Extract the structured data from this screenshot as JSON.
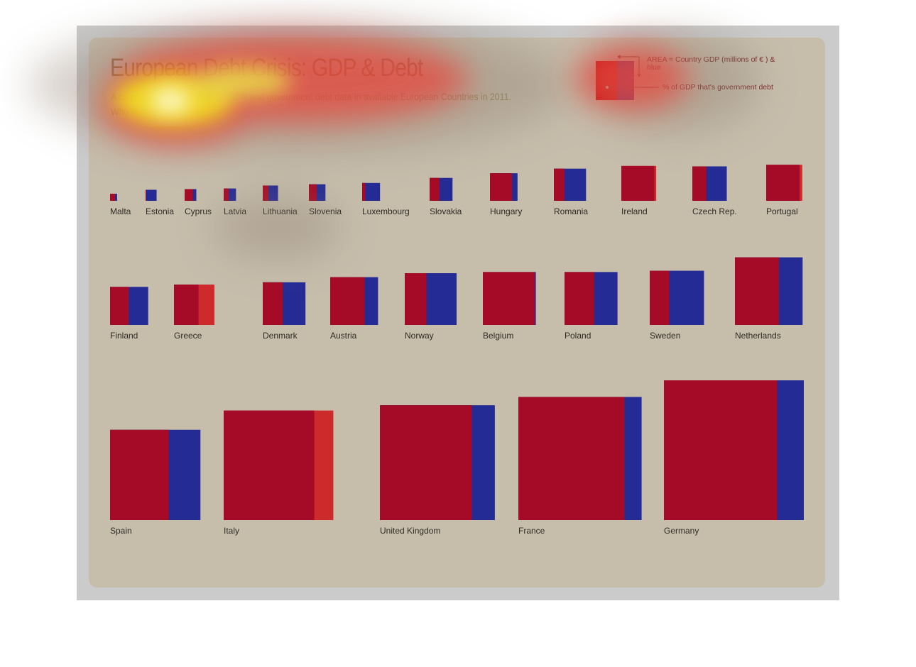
{
  "title": "European Debt Crisis: GDP & Debt",
  "subtitle_lines": [
    "A comparative visualisation of GDP and government debt data in available European Countries in 2011.",
    "Who is most in red?"
  ],
  "legend": {
    "area_label": "AREA = Country GDP (millions of  € ) & blue",
    "pct_label": "% of GDP that's government debt"
  },
  "colors": {
    "debt": "#a50a26",
    "remaining_gdp": "#242b95",
    "over_100_percent": "#cd2a2c",
    "panel": "#c6bdab",
    "frame": "#cbcbcb"
  },
  "chart_data": {
    "type": "area-proportional squares",
    "value_meaning": "debt_pct = government debt as % of GDP; gdp = relative GDP (square area)",
    "series": [
      {
        "name": "Malta",
        "gdp": 6500,
        "debt_pct": 72
      },
      {
        "name": "Estonia",
        "gdp": 16000,
        "debt_pct": 6
      },
      {
        "name": "Cyprus",
        "gdp": 18000,
        "debt_pct": 71
      },
      {
        "name": "Latvia",
        "gdp": 20000,
        "debt_pct": 42
      },
      {
        "name": "Lithuania",
        "gdp": 30700,
        "debt_pct": 38
      },
      {
        "name": "Slovenia",
        "gdp": 36000,
        "debt_pct": 47
      },
      {
        "name": "Luxembourg",
        "gdp": 42000,
        "debt_pct": 18
      },
      {
        "name": "Slovakia",
        "gdp": 69000,
        "debt_pct": 43
      },
      {
        "name": "Hungary",
        "gdp": 100000,
        "debt_pct": 80
      },
      {
        "name": "Romania",
        "gdp": 136000,
        "debt_pct": 33
      },
      {
        "name": "Ireland",
        "gdp": 160000,
        "debt_pct": 106
      },
      {
        "name": "Czech Rep.",
        "gdp": 156000,
        "debt_pct": 41
      },
      {
        "name": "Portugal",
        "gdp": 171000,
        "debt_pct": 108
      },
      {
        "name": "Finland",
        "gdp": 191000,
        "debt_pct": 49
      },
      {
        "name": "Greece",
        "gdp": 215000,
        "debt_pct": 165
      },
      {
        "name": "Denmark",
        "gdp": 240000,
        "debt_pct": 47
      },
      {
        "name": "Austria",
        "gdp": 301000,
        "debt_pct": 72
      },
      {
        "name": "Norway",
        "gdp": 353000,
        "debt_pct": 42
      },
      {
        "name": "Belgium",
        "gdp": 369000,
        "debt_pct": 98
      },
      {
        "name": "Poland",
        "gdp": 369000,
        "debt_pct": 56
      },
      {
        "name": "Sweden",
        "gdp": 387000,
        "debt_pct": 36
      },
      {
        "name": "Netherlands",
        "gdp": 602000,
        "debt_pct": 65
      },
      {
        "name": "Spain",
        "gdp": 1073000,
        "debt_pct": 65
      },
      {
        "name": "Italy",
        "gdp": 1580000,
        "debt_pct": 121
      },
      {
        "name": "United Kingdom",
        "gdp": 1736000,
        "debt_pct": 80
      },
      {
        "name": "France",
        "gdp": 1996000,
        "debt_pct": 86
      },
      {
        "name": "Germany",
        "gdp": 2571000,
        "debt_pct": 81
      }
    ]
  }
}
